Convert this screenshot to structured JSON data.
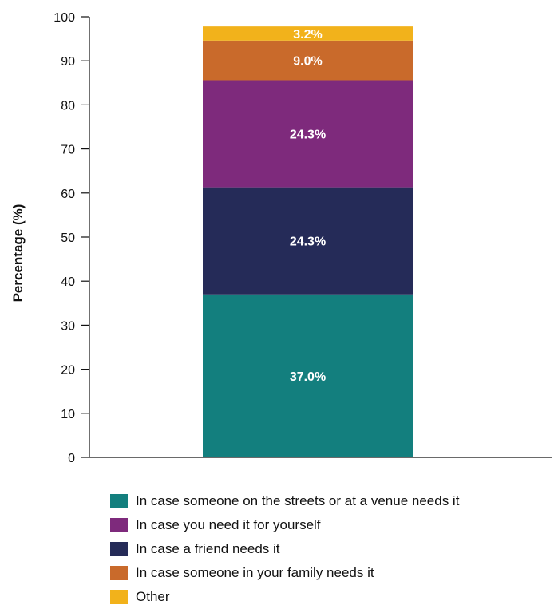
{
  "chart_data": {
    "type": "bar",
    "stacked": true,
    "categories": [
      ""
    ],
    "ylabel": "Percentage (%)",
    "xlabel": "",
    "ylim": [
      0,
      100
    ],
    "yticks": [
      0,
      10,
      20,
      30,
      40,
      50,
      60,
      70,
      80,
      90,
      100
    ],
    "grid": false,
    "legend_position": "bottom",
    "series": [
      {
        "name": "In case someone on the streets or at a venue needs it",
        "values": [
          37.0
        ],
        "label": "37.0%",
        "color": "#137f7e"
      },
      {
        "name": "In case a friend needs it",
        "values": [
          24.3
        ],
        "label": "24.3%",
        "color": "#252b58"
      },
      {
        "name": "In case you need it for yourself",
        "values": [
          24.3
        ],
        "label": "24.3%",
        "color": "#7e2a7c"
      },
      {
        "name": "In case someone in your family needs it",
        "values": [
          9.0
        ],
        "label": "9.0%",
        "color": "#c96a2b"
      },
      {
        "name": "Other",
        "values": [
          3.2
        ],
        "label": "3.2%",
        "color": "#f2b21b"
      }
    ],
    "legend_order": [
      "In case someone on the streets or at a venue needs it",
      "In case you need it for yourself",
      "In case a friend needs it",
      "In case someone in your family needs it",
      "Other"
    ]
  }
}
